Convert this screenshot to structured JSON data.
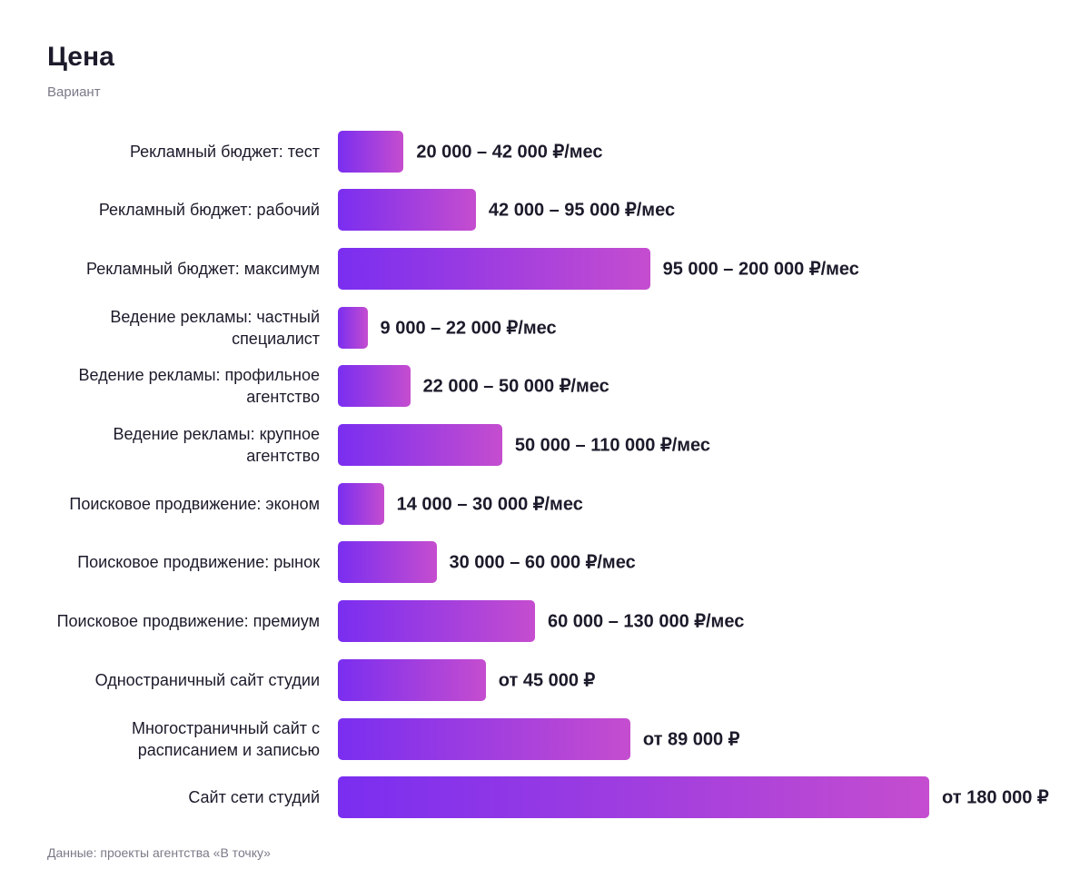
{
  "chart_data": {
    "type": "bar",
    "orientation": "horizontal",
    "title": "Цена",
    "subtitle": "Вариант",
    "categories": [
      "Рекламный бюджет: тест",
      "Рекламный бюджет: рабочий",
      "Рекламный бюджет: максимум",
      "Ведение рекламы: частный специалист",
      "Ведение рекламы: профильное агентство",
      "Ведение рекламы: крупное агентство",
      "Поисковое продвижение: эконом",
      "Поисковое продвижение: рынок",
      "Поисковое продвижение: премиум",
      "Одностраничный сайт студии",
      "Многостраничный сайт с расписанием и записью",
      "Сайт сети студий"
    ],
    "values": [
      20000,
      42000,
      95000,
      9000,
      22000,
      50000,
      14000,
      30000,
      60000,
      45000,
      89000,
      180000
    ],
    "value_labels": [
      "20 000 – 42 000 ₽/мес",
      "42 000 – 95 000 ₽/мес",
      "95 000 – 200 000 ₽/мес",
      "9 000 – 22 000 ₽/мес",
      "22 000 – 50 000 ₽/мес",
      "50 000 – 110 000 ₽/мес",
      "14 000 – 30 000 ₽/мес",
      "30 000 – 60 000 ₽/мес",
      "60 000 – 130 000 ₽/мес",
      "от 45 000 ₽",
      "от 89 000 ₽",
      "от 180 000 ₽"
    ],
    "color": [
      "#7a2ef0",
      "#c54dcf"
    ],
    "source": "Данные: проекты агентства «В точку»"
  }
}
